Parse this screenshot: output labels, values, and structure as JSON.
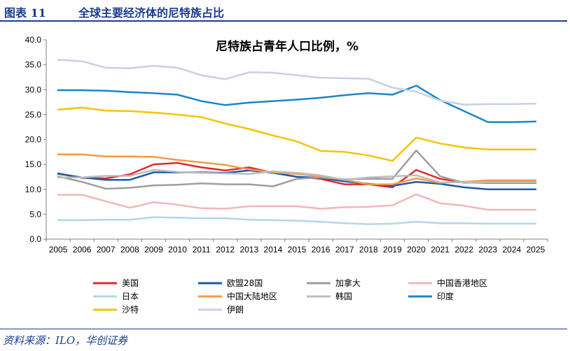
{
  "figure": {
    "number": "图表 11",
    "title": "全球主要经济体的尼特族占比",
    "source": "资料来源：ILO，华创证券"
  },
  "chart_data": {
    "type": "line",
    "title": "尼特族占青年人口比例，%",
    "xlabel": "",
    "ylabel": "",
    "ylim": [
      0,
      40
    ],
    "y_ticks": [
      "0.0",
      "5.0",
      "10.0",
      "15.0",
      "20.0",
      "25.0",
      "30.0",
      "35.0",
      "40.0"
    ],
    "x": [
      "2005",
      "2006",
      "2007",
      "2008",
      "2009",
      "2010",
      "2011",
      "2012",
      "2013",
      "2014",
      "2015",
      "2016",
      "2017",
      "2018",
      "2019",
      "2020",
      "2021",
      "2022",
      "2023",
      "2024",
      "2025"
    ],
    "grid": false,
    "legend_position": "bottom",
    "series": [
      {
        "name": "美国",
        "color": "#e0282e",
        "values": [
          13.2,
          12.3,
          12.2,
          13.0,
          15.0,
          15.3,
          14.4,
          13.8,
          14.4,
          13.3,
          12.5,
          12.1,
          11.0,
          11.0,
          10.4,
          13.9,
          12.1,
          11.4,
          11.3,
          11.3,
          11.3
        ]
      },
      {
        "name": "欧盟28国",
        "color": "#1f5aa6",
        "values": [
          13.1,
          12.4,
          11.9,
          11.9,
          13.4,
          13.4,
          13.4,
          13.3,
          13.8,
          13.3,
          12.5,
          12.3,
          11.6,
          11.1,
          10.7,
          11.5,
          11.1,
          10.4,
          10.0,
          10.0,
          10.0
        ]
      },
      {
        "name": "加拿大",
        "color": "#9e9e9e",
        "values": [
          12.6,
          11.5,
          10.1,
          10.3,
          10.8,
          10.9,
          11.2,
          11.0,
          11.0,
          10.6,
          12.1,
          12.4,
          12.0,
          12.1,
          12.1,
          17.8,
          12.6,
          11.3,
          11.5,
          11.5,
          11.5
        ]
      },
      {
        "name": "中国香港地区",
        "color": "#f0b7b9",
        "values": [
          8.9,
          8.9,
          7.6,
          6.3,
          7.4,
          6.9,
          6.2,
          6.1,
          6.6,
          6.6,
          6.6,
          6.1,
          6.4,
          6.5,
          6.8,
          9.0,
          7.2,
          6.7,
          5.9,
          5.9,
          5.9
        ]
      },
      {
        "name": "日本",
        "color": "#b3d6ea",
        "values": [
          3.8,
          3.8,
          3.9,
          3.9,
          4.4,
          4.3,
          4.2,
          4.2,
          3.9,
          3.8,
          3.7,
          3.5,
          3.2,
          3.0,
          3.1,
          3.5,
          3.2,
          3.2,
          3.1,
          3.1,
          3.1
        ]
      },
      {
        "name": "中国大陆地区",
        "color": "#f29a4b",
        "values": [
          17.0,
          17.0,
          16.6,
          16.6,
          16.5,
          15.9,
          15.4,
          14.9,
          14.0,
          13.4,
          13.1,
          12.6,
          11.9,
          11.0,
          11.0,
          12.2,
          11.3,
          11.5,
          11.8,
          11.8,
          11.8
        ]
      },
      {
        "name": "韩国",
        "color": "#bdbdbd",
        "values": [
          12.4,
          12.4,
          12.7,
          12.7,
          13.9,
          13.5,
          13.3,
          13.2,
          13.1,
          13.6,
          13.3,
          12.8,
          11.9,
          12.4,
          12.6,
          12.8,
          11.4,
          11.4,
          11.4,
          11.4,
          11.4
        ]
      },
      {
        "name": "印度",
        "color": "#1a86c8",
        "values": [
          29.9,
          29.9,
          29.8,
          29.5,
          29.3,
          29.0,
          27.7,
          26.9,
          27.4,
          27.7,
          28.0,
          28.4,
          28.9,
          29.3,
          29.0,
          30.8,
          27.9,
          25.7,
          23.5,
          23.5,
          23.6
        ]
      },
      {
        "name": "沙特",
        "color": "#f7c300",
        "values": [
          26.0,
          26.4,
          25.8,
          25.7,
          25.4,
          25.0,
          24.5,
          23.2,
          22.1,
          20.8,
          19.6,
          17.7,
          17.5,
          16.8,
          15.7,
          20.4,
          19.2,
          18.4,
          18.0,
          18.0,
          18.0
        ]
      },
      {
        "name": "伊朗",
        "color": "#c9cfe4",
        "values": [
          36.0,
          35.7,
          34.4,
          34.3,
          34.8,
          34.4,
          32.9,
          32.1,
          33.5,
          33.4,
          32.9,
          32.4,
          32.3,
          32.2,
          30.4,
          29.6,
          27.8,
          27.0,
          27.1,
          27.1,
          27.2
        ]
      }
    ]
  }
}
